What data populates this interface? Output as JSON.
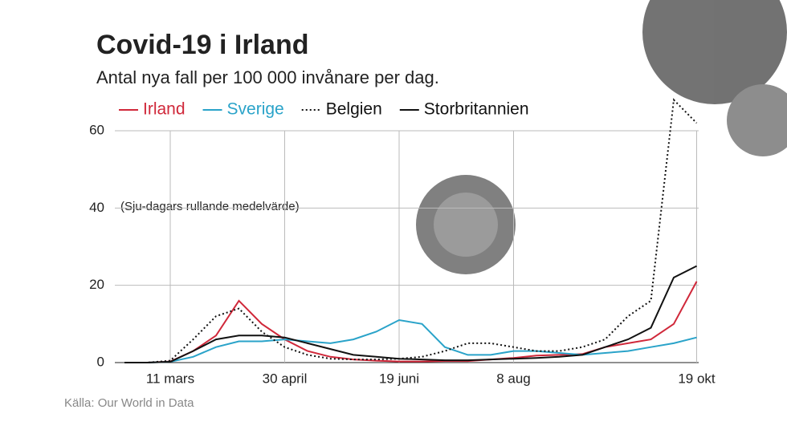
{
  "chart_data": {
    "type": "line",
    "title": "Covid-19 i Irland",
    "subtitle": "Antal nya fall per 100 000 invånare per dag.",
    "annotation": "(Sju-dagars rullande medelvärde)",
    "source": "Källa: Our World in Data",
    "categories": [
      null,
      null,
      "11 mars",
      null,
      null,
      null,
      null,
      "30 april",
      null,
      null,
      null,
      null,
      "19 juni",
      null,
      null,
      null,
      null,
      "8 aug",
      null,
      null,
      null,
      null,
      null,
      null,
      null,
      "19 okt"
    ],
    "series": [
      {
        "name": "Irland",
        "color": "#d0283a",
        "style": "solid",
        "values": [
          0,
          0,
          0.3,
          3,
          7,
          16,
          10,
          6,
          3,
          1.5,
          0.8,
          0.5,
          0.3,
          0.3,
          0.4,
          0.4,
          0.8,
          1.2,
          1.8,
          2,
          2.2,
          4,
          5,
          6,
          10,
          21
        ]
      },
      {
        "name": "Sverige",
        "color": "#2aa3c9",
        "style": "solid",
        "values": [
          0,
          0,
          0.2,
          1.5,
          4,
          5.5,
          5.5,
          6,
          5.5,
          5,
          6,
          8,
          11,
          10,
          4,
          2,
          2,
          3,
          3,
          2.5,
          2,
          2.5,
          3,
          4,
          5,
          6.5
        ]
      },
      {
        "name": "Belgien",
        "color": "#111111",
        "style": "dotted",
        "values": [
          0,
          0,
          0.5,
          6,
          12,
          14,
          8,
          4,
          2,
          1,
          0.8,
          0.8,
          1,
          1.5,
          3,
          5,
          5,
          4,
          3,
          3,
          4,
          6,
          12,
          16,
          68,
          62
        ]
      },
      {
        "name": "Storbritannien",
        "color": "#111111",
        "style": "solid",
        "values": [
          0,
          0,
          0.2,
          3,
          6,
          7,
          7,
          6.5,
          5,
          3.5,
          2,
          1.5,
          1,
          0.8,
          0.6,
          0.6,
          0.8,
          1,
          1.2,
          1.5,
          2,
          4,
          6,
          9,
          22,
          25
        ]
      }
    ],
    "ylim": [
      0,
      60
    ],
    "yticks": [
      0,
      20,
      40,
      60
    ],
    "grid": true
  }
}
